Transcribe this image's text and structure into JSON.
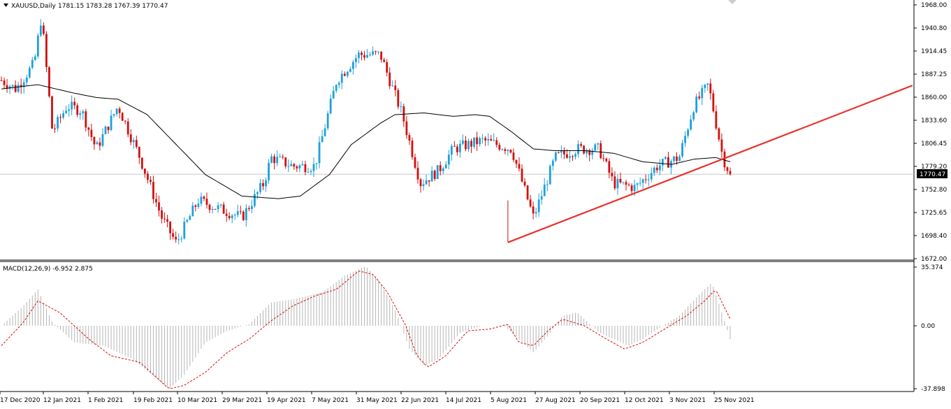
{
  "header": {
    "symbol_label": "XAUUSD,Daily",
    "ohlc_label": "1781.15 1783.28 1767.39 1770.47"
  },
  "price_panel": {
    "current_price_label": "1770.47",
    "y_ticks": [
      "1968.00",
      "1940.80",
      "1914.45",
      "1887.25",
      "1860.00",
      "1833.60",
      "1806.45",
      "1779.20",
      "1752.80",
      "1725.65",
      "1698.40",
      "1672.00"
    ]
  },
  "macd_panel": {
    "label": "MACD(12,26,9) -6.952 2.875",
    "y_ticks": [
      "35.374",
      "0.00",
      "-37.898"
    ]
  },
  "x_ticks": [
    "17 Dec 2020",
    "12 Jan 2021",
    "1 Feb 2021",
    "19 Feb 2021",
    "10 Mar 2021",
    "29 Mar 2021",
    "19 Apr 2021",
    "7 May 2021",
    "31 May 2021",
    "22 Jun 2021",
    "14 Jul 2021",
    "5 Aug 2021",
    "27 Aug 2021",
    "20 Sep 2021",
    "12 Oct 2021",
    "3 Nov 2021",
    "25 Nov 2021"
  ],
  "colors": {
    "bull": "#1ea0dc",
    "bear": "#d40f0f",
    "trendline": "#e8312a",
    "ma": "#000000",
    "macd_hist": "#b4b4b4",
    "macd_signal": "#d40f0f",
    "grid_axis": "#000000"
  },
  "chart_data": {
    "type": "candlestick",
    "instrument": "XAUUSD",
    "timeframe": "Daily",
    "last_close": 1770.47,
    "price_range": [
      1672.0,
      1968.0
    ],
    "macd_range": [
      -37.898,
      35.374
    ],
    "price_path": [
      [
        0,
        1880
      ],
      [
        0.02,
        1870
      ],
      [
        0.045,
        1900
      ],
      [
        0.055,
        1955
      ],
      [
        0.07,
        1820
      ],
      [
        0.09,
        1850
      ],
      [
        0.11,
        1845
      ],
      [
        0.13,
        1800
      ],
      [
        0.16,
        1850
      ],
      [
        0.19,
        1790
      ],
      [
        0.22,
        1720
      ],
      [
        0.24,
        1690
      ],
      [
        0.27,
        1740
      ],
      [
        0.3,
        1730
      ],
      [
        0.33,
        1720
      ],
      [
        0.36,
        1760
      ],
      [
        0.37,
        1790
      ],
      [
        0.4,
        1780
      ],
      [
        0.43,
        1780
      ],
      [
        0.46,
        1880
      ],
      [
        0.49,
        1910
      ],
      [
        0.52,
        1910
      ],
      [
        0.55,
        1840
      ],
      [
        0.575,
        1760
      ],
      [
        0.6,
        1775
      ],
      [
        0.62,
        1800
      ],
      [
        0.66,
        1810
      ],
      [
        0.7,
        1800
      ],
      [
        0.73,
        1720
      ],
      [
        0.76,
        1790
      ],
      [
        0.79,
        1800
      ],
      [
        0.82,
        1800
      ],
      [
        0.84,
        1760
      ],
      [
        0.87,
        1755
      ],
      [
        0.9,
        1780
      ],
      [
        0.93,
        1790
      ],
      [
        0.95,
        1850
      ],
      [
        0.97,
        1875
      ],
      [
        0.99,
        1790
      ],
      [
        1.0,
        1770
      ]
    ],
    "ma_path": [
      [
        0,
        1870
      ],
      [
        0.05,
        1875
      ],
      [
        0.1,
        1865
      ],
      [
        0.13,
        1860
      ],
      [
        0.16,
        1858
      ],
      [
        0.2,
        1840
      ],
      [
        0.24,
        1805
      ],
      [
        0.28,
        1770
      ],
      [
        0.33,
        1745
      ],
      [
        0.38,
        1742
      ],
      [
        0.41,
        1745
      ],
      [
        0.45,
        1770
      ],
      [
        0.48,
        1805
      ],
      [
        0.52,
        1830
      ],
      [
        0.54,
        1840
      ],
      [
        0.58,
        1842
      ],
      [
        0.62,
        1838
      ],
      [
        0.65,
        1840
      ],
      [
        0.67,
        1838
      ],
      [
        0.7,
        1820
      ],
      [
        0.73,
        1800
      ],
      [
        0.76,
        1798
      ],
      [
        0.8,
        1798
      ],
      [
        0.84,
        1795
      ],
      [
        0.88,
        1785
      ],
      [
        0.92,
        1782
      ],
      [
        0.95,
        1788
      ],
      [
        0.98,
        1790
      ],
      [
        1.0,
        1785
      ]
    ],
    "trendline": {
      "start": [
        0.695,
        1691
      ],
      "end": [
        1.25,
        1874
      ]
    },
    "macd_signal_path": [
      [
        0,
        -12
      ],
      [
        0.03,
        2
      ],
      [
        0.05,
        15
      ],
      [
        0.08,
        8
      ],
      [
        0.12,
        -8
      ],
      [
        0.15,
        -18
      ],
      [
        0.19,
        -22
      ],
      [
        0.23,
        -38
      ],
      [
        0.25,
        -36
      ],
      [
        0.28,
        -28
      ],
      [
        0.31,
        -16
      ],
      [
        0.34,
        -8
      ],
      [
        0.37,
        3
      ],
      [
        0.4,
        12
      ],
      [
        0.43,
        18
      ],
      [
        0.46,
        22
      ],
      [
        0.49,
        33
      ],
      [
        0.51,
        31
      ],
      [
        0.53,
        20
      ],
      [
        0.555,
        0
      ],
      [
        0.57,
        -18
      ],
      [
        0.585,
        -25
      ],
      [
        0.61,
        -18
      ],
      [
        0.64,
        -3
      ],
      [
        0.67,
        -2
      ],
      [
        0.695,
        1
      ],
      [
        0.71,
        -10
      ],
      [
        0.73,
        -12
      ],
      [
        0.75,
        -3
      ],
      [
        0.77,
        4
      ],
      [
        0.8,
        0
      ],
      [
        0.83,
        -8
      ],
      [
        0.855,
        -14
      ],
      [
        0.88,
        -10
      ],
      [
        0.91,
        -2
      ],
      [
        0.94,
        6
      ],
      [
        0.965,
        15
      ],
      [
        0.98,
        22
      ],
      [
        1.0,
        4
      ]
    ],
    "macd_hist_path": [
      [
        0,
        0
      ],
      [
        0.03,
        12
      ],
      [
        0.05,
        22
      ],
      [
        0.07,
        2
      ],
      [
        0.1,
        -10
      ],
      [
        0.14,
        -12
      ],
      [
        0.18,
        -20
      ],
      [
        0.23,
        -38
      ],
      [
        0.25,
        -30
      ],
      [
        0.28,
        -10
      ],
      [
        0.31,
        -3
      ],
      [
        0.34,
        1
      ],
      [
        0.37,
        14
      ],
      [
        0.4,
        16
      ],
      [
        0.44,
        20
      ],
      [
        0.47,
        30
      ],
      [
        0.5,
        36
      ],
      [
        0.52,
        26
      ],
      [
        0.54,
        10
      ],
      [
        0.56,
        -14
      ],
      [
        0.58,
        -24
      ],
      [
        0.6,
        -20
      ],
      [
        0.63,
        -4
      ],
      [
        0.66,
        0
      ],
      [
        0.69,
        0
      ],
      [
        0.71,
        -8
      ],
      [
        0.73,
        -16
      ],
      [
        0.75,
        -6
      ],
      [
        0.77,
        6
      ],
      [
        0.79,
        8
      ],
      [
        0.82,
        -4
      ],
      [
        0.84,
        -8
      ],
      [
        0.86,
        -12
      ],
      [
        0.88,
        -8
      ],
      [
        0.9,
        -2
      ],
      [
        0.93,
        6
      ],
      [
        0.96,
        20
      ],
      [
        0.975,
        26
      ],
      [
        0.99,
        6
      ],
      [
        1.0,
        -8
      ]
    ]
  }
}
